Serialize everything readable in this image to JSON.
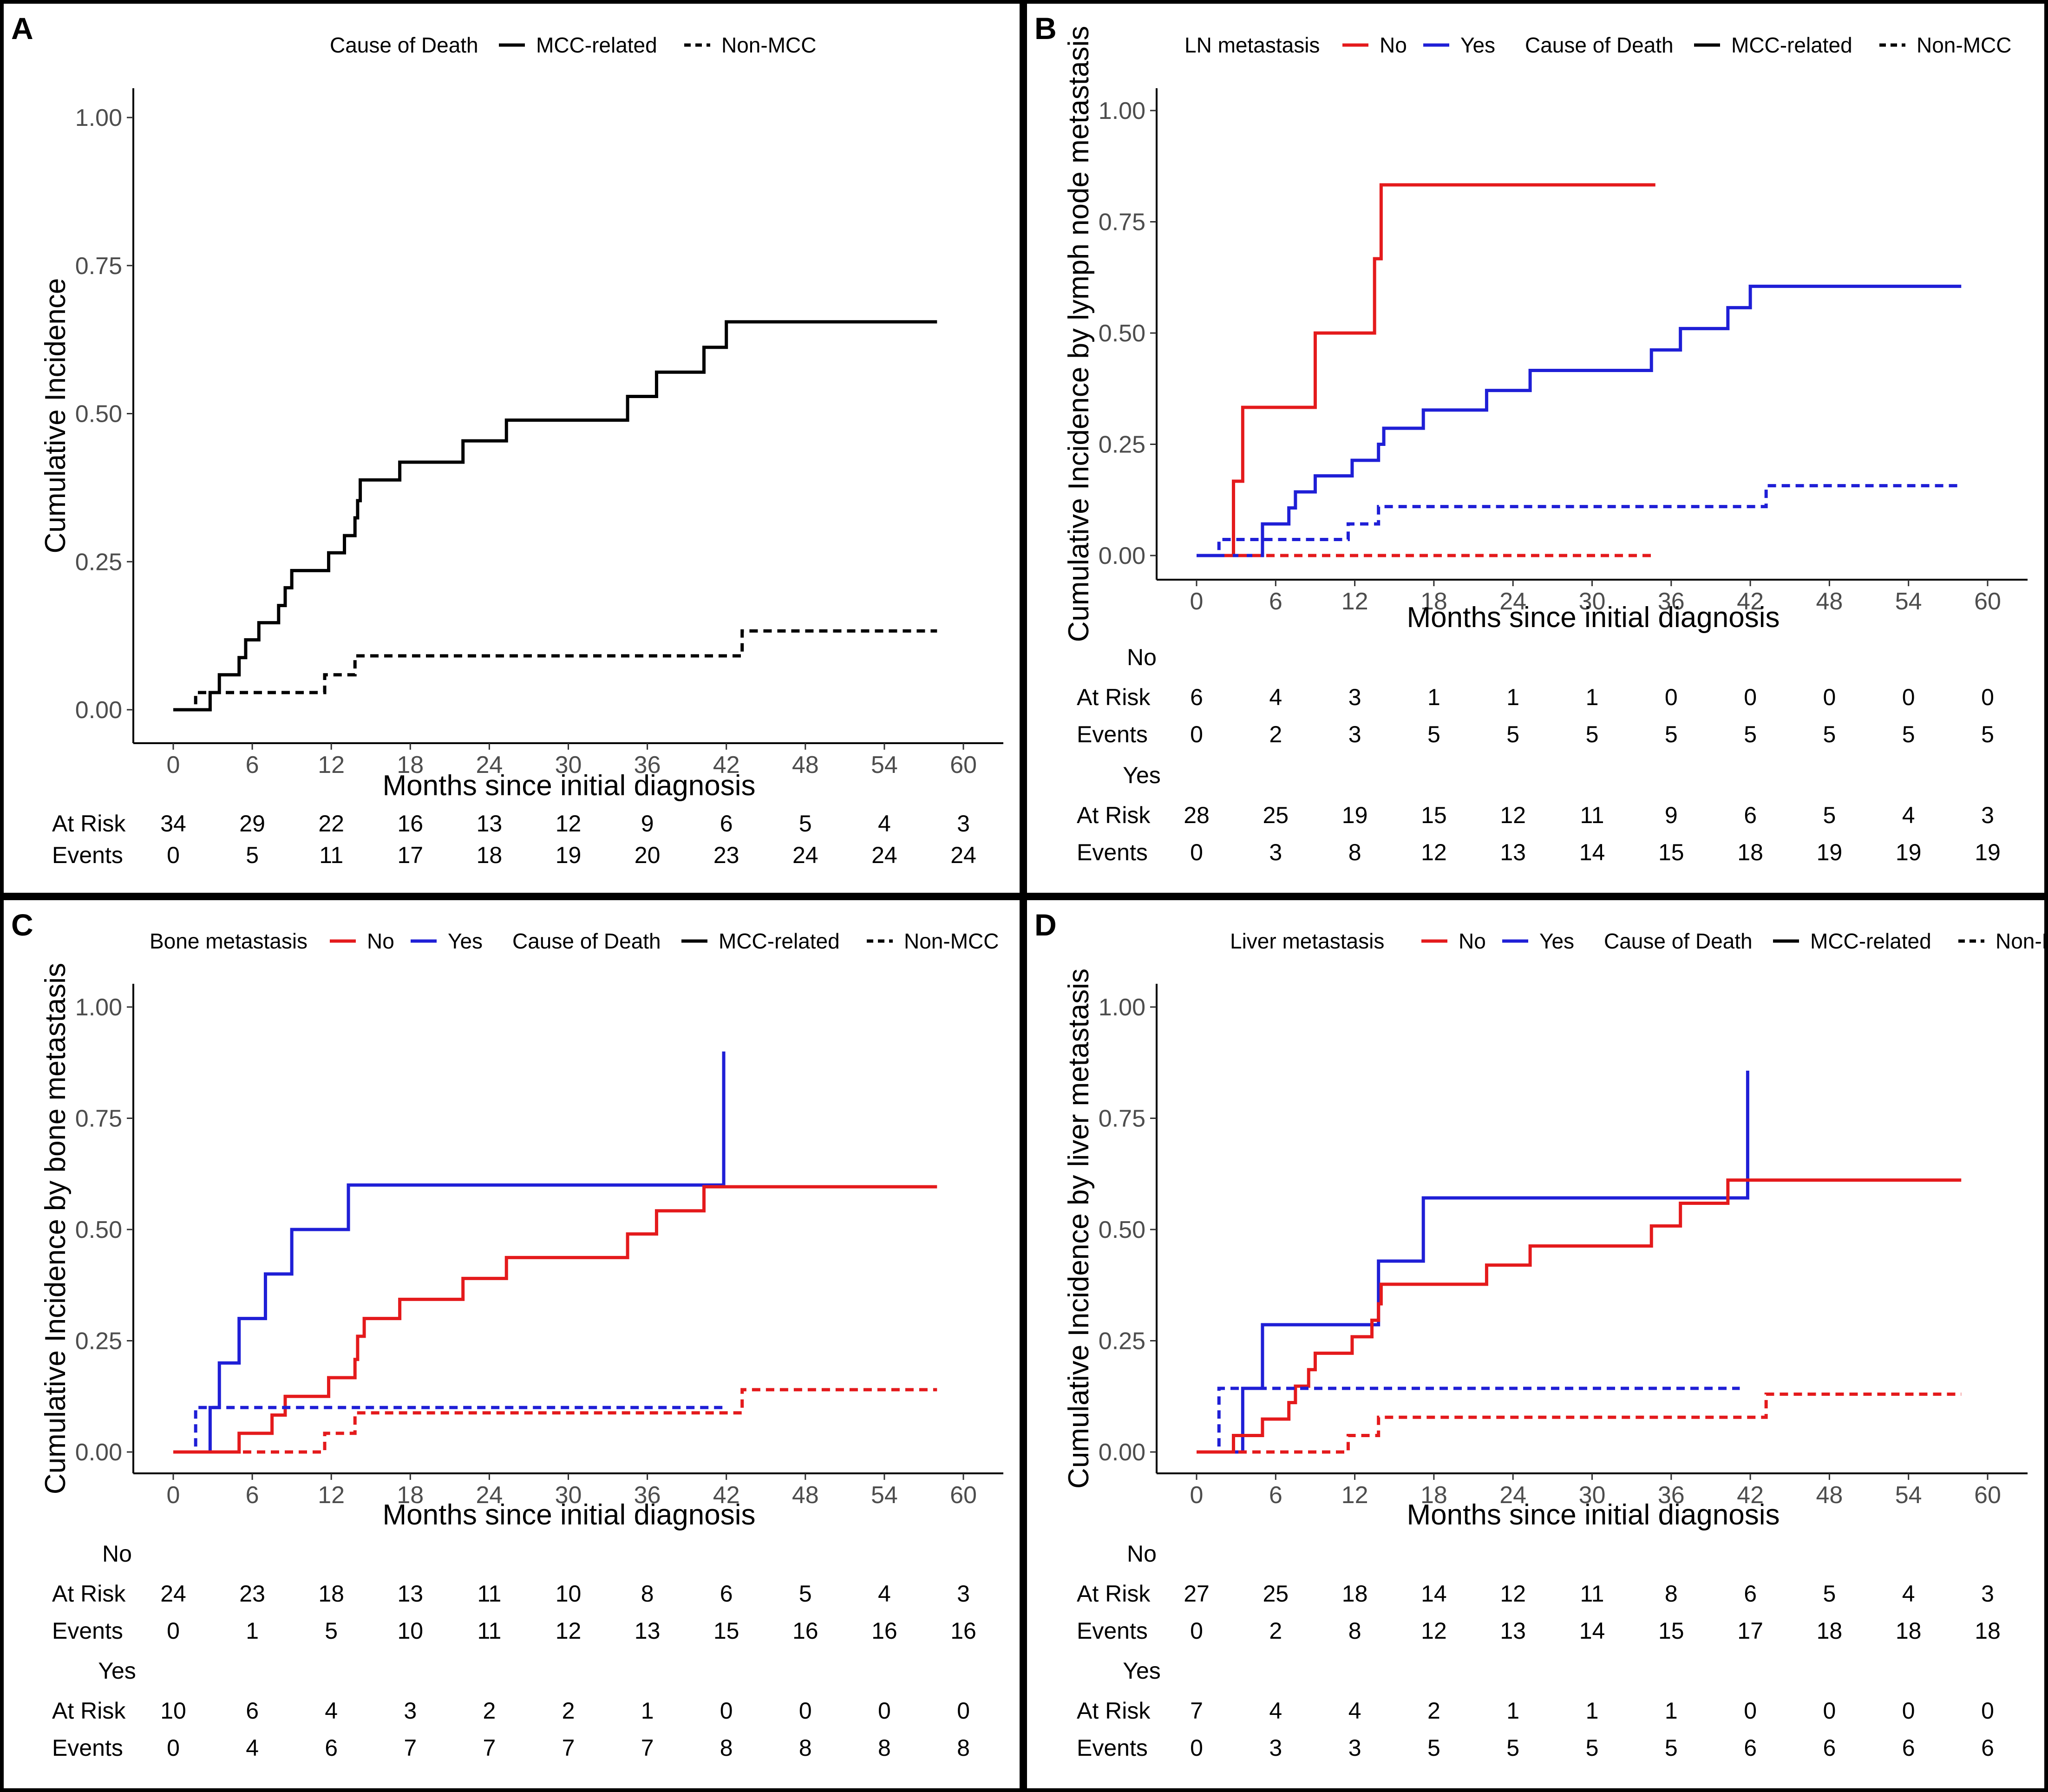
{
  "figure": {
    "x_axis_label": "Months since initial diagnosis",
    "x_ticks": [
      0,
      6,
      12,
      18,
      24,
      30,
      36,
      42,
      48,
      54,
      60
    ],
    "y_ticks": [
      "0.00",
      "0.25",
      "0.50",
      "0.75",
      "1.00"
    ],
    "colors": {
      "no": "#e41a1c",
      "yes": "#1f1fd6",
      "overall": "#000000"
    }
  },
  "chart_data": [
    {
      "panel": "A",
      "type": "line",
      "ylabel": "Cumulative Incidence",
      "xlabel": "Months since initial diagnosis",
      "ylim": [
        0,
        1
      ],
      "xlim": [
        0,
        60
      ],
      "legend": {
        "position": "top",
        "items": [
          {
            "group": "Cause of Death",
            "entries": [
              {
                "label": "MCC-related",
                "dash": "solid",
                "color": "#000000"
              },
              {
                "label": "Non-MCC",
                "dash": "dashed",
                "color": "#000000"
              }
            ]
          }
        ]
      },
      "series": [
        {
          "name": "MCC-related",
          "color": "#000000",
          "dash": "solid",
          "x": [
            0,
            2.8,
            3.5,
            5.0,
            5.5,
            6.5,
            8.0,
            8.5,
            9.0,
            11.8,
            13.0,
            13.8,
            14.0,
            14.2,
            17.2,
            22.0,
            25.3,
            34.5,
            36.7,
            40.3,
            42.0,
            58.0
          ],
          "y": [
            0,
            0.029,
            0.059,
            0.088,
            0.118,
            0.147,
            0.176,
            0.206,
            0.235,
            0.265,
            0.294,
            0.324,
            0.353,
            0.388,
            0.418,
            0.454,
            0.489,
            0.529,
            0.57,
            0.612,
            0.655,
            0.655
          ]
        },
        {
          "name": "Non-MCC",
          "color": "#000000",
          "dash": "dashed",
          "x": [
            0,
            1.7,
            11.5,
            13.8,
            43.2,
            58.0
          ],
          "y": [
            0,
            0.029,
            0.059,
            0.091,
            0.133,
            0.133
          ]
        }
      ],
      "risk_table": [
        {
          "group": "",
          "rows": [
            {
              "label": "At Risk",
              "values": [
                34,
                29,
                22,
                16,
                13,
                12,
                9,
                6,
                5,
                4,
                3
              ]
            },
            {
              "label": "Events",
              "values": [
                0,
                5,
                11,
                17,
                18,
                19,
                20,
                23,
                24,
                24,
                24
              ]
            }
          ]
        }
      ]
    },
    {
      "panel": "B",
      "type": "line",
      "ylabel": "Cumulative Incidence by lymph node metastasis",
      "xlabel": "Months since initial diagnosis",
      "ylim": [
        0,
        1
      ],
      "xlim": [
        0,
        60
      ],
      "legend": {
        "position": "top",
        "items": [
          {
            "group": "LN metastasis",
            "entries": [
              {
                "label": "No",
                "dash": "solid",
                "color": "#e41a1c"
              },
              {
                "label": "Yes",
                "dash": "solid",
                "color": "#1f1fd6"
              }
            ]
          },
          {
            "group": "Cause of Death",
            "entries": [
              {
                "label": "MCC-related",
                "dash": "solid",
                "color": "#000000"
              },
              {
                "label": "Non-MCC",
                "dash": "dashed",
                "color": "#000000"
              }
            ]
          }
        ]
      },
      "series": [
        {
          "name": "No, MCC-related",
          "color": "#e41a1c",
          "dash": "solid",
          "x": [
            0,
            2.8,
            3.5,
            9.0,
            13.5,
            14.0,
            34.8
          ],
          "y": [
            0,
            0.167,
            0.333,
            0.5,
            0.667,
            0.833,
            0.833
          ]
        },
        {
          "name": "Yes, MCC-related",
          "color": "#1f1fd6",
          "dash": "solid",
          "x": [
            0,
            5.0,
            7.0,
            7.5,
            9.0,
            11.8,
            13.8,
            14.2,
            17.2,
            22.0,
            25.3,
            34.5,
            36.7,
            40.3,
            42.0,
            58.0
          ],
          "y": [
            0,
            0.071,
            0.107,
            0.143,
            0.179,
            0.214,
            0.25,
            0.286,
            0.327,
            0.371,
            0.416,
            0.462,
            0.51,
            0.557,
            0.605,
            0.605
          ]
        },
        {
          "name": "No, Non-MCC",
          "color": "#e41a1c",
          "dash": "dashed",
          "x": [
            0,
            34.8
          ],
          "y": [
            0,
            0
          ]
        },
        {
          "name": "Yes, Non-MCC",
          "color": "#1f1fd6",
          "dash": "dashed",
          "x": [
            0,
            1.7,
            11.5,
            13.8,
            43.2,
            58.0
          ],
          "y": [
            0,
            0.036,
            0.071,
            0.11,
            0.157,
            0.157
          ]
        }
      ],
      "risk_table": [
        {
          "group": "No",
          "rows": [
            {
              "label": "At Risk",
              "values": [
                6,
                4,
                3,
                1,
                1,
                1,
                0,
                0,
                0,
                0,
                0
              ]
            },
            {
              "label": "Events",
              "values": [
                0,
                2,
                3,
                5,
                5,
                5,
                5,
                5,
                5,
                5,
                5
              ]
            }
          ]
        },
        {
          "group": "Yes",
          "rows": [
            {
              "label": "At Risk",
              "values": [
                28,
                25,
                19,
                15,
                12,
                11,
                9,
                6,
                5,
                4,
                3
              ]
            },
            {
              "label": "Events",
              "values": [
                0,
                3,
                8,
                12,
                13,
                14,
                15,
                18,
                19,
                19,
                19
              ]
            }
          ]
        }
      ]
    },
    {
      "panel": "C",
      "type": "line",
      "ylabel": "Cumulative Incidence by bone metastasis",
      "xlabel": "Months since initial diagnosis",
      "ylim": [
        0,
        1
      ],
      "xlim": [
        0,
        60
      ],
      "legend": {
        "position": "top",
        "items": [
          {
            "group": "Bone metastasis",
            "entries": [
              {
                "label": "No",
                "dash": "solid",
                "color": "#e41a1c"
              },
              {
                "label": "Yes",
                "dash": "solid",
                "color": "#1f1fd6"
              }
            ]
          },
          {
            "group": "Cause of Death",
            "entries": [
              {
                "label": "MCC-related",
                "dash": "solid",
                "color": "#000000"
              },
              {
                "label": "Non-MCC",
                "dash": "dashed",
                "color": "#000000"
              }
            ]
          }
        ]
      },
      "series": [
        {
          "name": "Yes, MCC-related",
          "color": "#1f1fd6",
          "dash": "solid",
          "x": [
            0,
            2.8,
            3.5,
            5.0,
            7.0,
            9.0,
            13.3,
            41.8,
            41.8
          ],
          "y": [
            0,
            0.1,
            0.2,
            0.3,
            0.4,
            0.5,
            0.6,
            0.6,
            0.9
          ]
        },
        {
          "name": "No, MCC-related",
          "color": "#e41a1c",
          "dash": "solid",
          "x": [
            0,
            5.0,
            7.5,
            8.5,
            9.0,
            11.8,
            13.8,
            14.0,
            14.5,
            17.2,
            22.0,
            25.3,
            34.5,
            36.7,
            40.3,
            42.0,
            58.0
          ],
          "y": [
            0,
            0.042,
            0.083,
            0.125,
            0.125,
            0.167,
            0.208,
            0.26,
            0.3,
            0.343,
            0.39,
            0.437,
            0.49,
            0.542,
            0.596,
            0.596,
            0.596
          ]
        },
        {
          "name": "Yes, Non-MCC",
          "color": "#1f1fd6",
          "dash": "dashed",
          "x": [
            0,
            1.7,
            41.8
          ],
          "y": [
            0,
            0.1,
            0.1
          ]
        },
        {
          "name": "No, Non-MCC",
          "color": "#e41a1c",
          "dash": "dashed",
          "x": [
            0,
            11.5,
            13.8,
            43.2,
            58.0
          ],
          "y": [
            0,
            0.042,
            0.088,
            0.14,
            0.14
          ]
        }
      ],
      "risk_table": [
        {
          "group": "No",
          "rows": [
            {
              "label": "At Risk",
              "values": [
                24,
                23,
                18,
                13,
                11,
                10,
                8,
                6,
                5,
                4,
                3
              ]
            },
            {
              "label": "Events",
              "values": [
                0,
                1,
                5,
                10,
                11,
                12,
                13,
                15,
                16,
                16,
                16
              ]
            }
          ]
        },
        {
          "group": "Yes",
          "rows": [
            {
              "label": "At Risk",
              "values": [
                10,
                6,
                4,
                3,
                2,
                2,
                1,
                0,
                0,
                0,
                0
              ]
            },
            {
              "label": "Events",
              "values": [
                0,
                4,
                6,
                7,
                7,
                7,
                7,
                8,
                8,
                8,
                8
              ]
            }
          ]
        }
      ]
    },
    {
      "panel": "D",
      "type": "line",
      "ylabel": "Cumulative Incidence by liver metastasis",
      "xlabel": "Months since initial diagnosis",
      "ylim": [
        0,
        1
      ],
      "xlim": [
        0,
        60
      ],
      "legend": {
        "position": "top",
        "items": [
          {
            "group": "Liver metastasis",
            "entries": [
              {
                "label": "No",
                "dash": "solid",
                "color": "#e41a1c"
              },
              {
                "label": "Yes",
                "dash": "solid",
                "color": "#1f1fd6"
              }
            ]
          },
          {
            "group": "Cause of Death",
            "entries": [
              {
                "label": "MCC-related",
                "dash": "solid",
                "color": "#000000"
              },
              {
                "label": "Non-MCC",
                "dash": "dashed",
                "color": "#000000"
              }
            ]
          }
        ]
      },
      "series": [
        {
          "name": "Yes, MCC-related",
          "color": "#1f1fd6",
          "dash": "solid",
          "x": [
            0,
            3.5,
            5.0,
            13.8,
            17.2,
            41.8,
            41.8
          ],
          "y": [
            0,
            0.143,
            0.286,
            0.429,
            0.571,
            0.571,
            0.857
          ]
        },
        {
          "name": "No, MCC-related",
          "color": "#e41a1c",
          "dash": "solid",
          "x": [
            0,
            2.8,
            5.0,
            7.0,
            7.5,
            8.5,
            9.0,
            11.8,
            13.3,
            13.8,
            14.0,
            22.0,
            25.3,
            34.5,
            36.7,
            40.3,
            58.0
          ],
          "y": [
            0,
            0.037,
            0.074,
            0.111,
            0.148,
            0.185,
            0.222,
            0.259,
            0.296,
            0.333,
            0.377,
            0.42,
            0.463,
            0.508,
            0.559,
            0.611,
            0.611
          ]
        },
        {
          "name": "Yes, Non-MCC",
          "color": "#1f1fd6",
          "dash": "dashed",
          "x": [
            0,
            1.7,
            41.2
          ],
          "y": [
            0,
            0.143,
            0.143
          ]
        },
        {
          "name": "No, Non-MCC",
          "color": "#e41a1c",
          "dash": "dashed",
          "x": [
            0,
            11.5,
            13.8,
            43.2,
            58.0
          ],
          "y": [
            0,
            0.037,
            0.078,
            0.13,
            0.13
          ]
        }
      ],
      "risk_table": [
        {
          "group": "No",
          "rows": [
            {
              "label": "At Risk",
              "values": [
                27,
                25,
                18,
                14,
                12,
                11,
                8,
                6,
                5,
                4,
                3
              ]
            },
            {
              "label": "Events",
              "values": [
                0,
                2,
                8,
                12,
                13,
                14,
                15,
                17,
                18,
                18,
                18
              ]
            }
          ]
        },
        {
          "group": "Yes",
          "rows": [
            {
              "label": "At Risk",
              "values": [
                7,
                4,
                4,
                2,
                1,
                1,
                1,
                0,
                0,
                0,
                0
              ]
            },
            {
              "label": "Events",
              "values": [
                0,
                3,
                3,
                5,
                5,
                5,
                5,
                6,
                6,
                6,
                6
              ]
            }
          ]
        }
      ]
    }
  ]
}
